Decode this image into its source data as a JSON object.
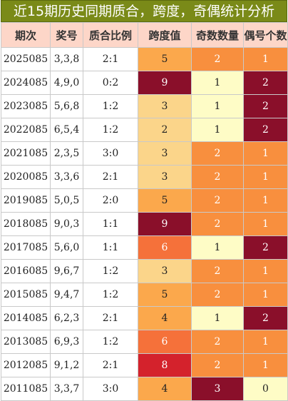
{
  "title": "近15期历史同期质合，跨度，奇偶统计分析",
  "headers": [
    "期次",
    "奖号",
    "质合比例",
    "跨度值",
    "奇数数量",
    "偶号个数"
  ],
  "colors": {
    "title_bg": "#7a8a18",
    "header_bg": "#fdd6c8",
    "cream": "#fefcc6",
    "light_orange": "#fbd58a",
    "orange": "#fba84c",
    "deep_orange": "#f88f3e",
    "red_orange": "#f5713a",
    "red": "#d4222c",
    "maroon": "#8a0f2a"
  },
  "rows": [
    {
      "period": "2025085",
      "numbers": "3,3,8",
      "ratio": "2:1",
      "span": "5",
      "odd": "2",
      "even": "1"
    },
    {
      "period": "2024085",
      "numbers": "4,9,0",
      "ratio": "0:2",
      "span": "9",
      "odd": "1",
      "even": "2"
    },
    {
      "period": "2023085",
      "numbers": "5,6,8",
      "ratio": "1:2",
      "span": "3",
      "odd": "1",
      "even": "2"
    },
    {
      "period": "2022085",
      "numbers": "6,5,4",
      "ratio": "1:2",
      "span": "2",
      "odd": "1",
      "even": "2"
    },
    {
      "period": "2021085",
      "numbers": "2,3,5",
      "ratio": "3:0",
      "span": "3",
      "odd": "2",
      "even": "1"
    },
    {
      "period": "2020085",
      "numbers": "3,3,6",
      "ratio": "2:1",
      "span": "3",
      "odd": "2",
      "even": "1"
    },
    {
      "period": "2019085",
      "numbers": "5,0,5",
      "ratio": "2:0",
      "span": "5",
      "odd": "2",
      "even": "1"
    },
    {
      "period": "2018085",
      "numbers": "9,0,3",
      "ratio": "1:1",
      "span": "9",
      "odd": "2",
      "even": "1"
    },
    {
      "period": "2017085",
      "numbers": "5,6,0",
      "ratio": "1:1",
      "span": "6",
      "odd": "1",
      "even": "2"
    },
    {
      "period": "2016085",
      "numbers": "9,6,7",
      "ratio": "1:2",
      "span": "3",
      "odd": "2",
      "even": "1"
    },
    {
      "period": "2015085",
      "numbers": "9,4,7",
      "ratio": "1:2",
      "span": "5",
      "odd": "2",
      "even": "1"
    },
    {
      "period": "2014085",
      "numbers": "6,2,3",
      "ratio": "2:1",
      "span": "4",
      "odd": "1",
      "even": "2"
    },
    {
      "period": "2013085",
      "numbers": "6,9,3",
      "ratio": "1:2",
      "span": "6",
      "odd": "2",
      "even": "1"
    },
    {
      "period": "2012085",
      "numbers": "9,1,2",
      "ratio": "2:1",
      "span": "8",
      "odd": "2",
      "even": "1"
    },
    {
      "period": "2011085",
      "numbers": "3,3,7",
      "ratio": "3:0",
      "span": "4",
      "odd": "3",
      "even": "0"
    }
  ]
}
